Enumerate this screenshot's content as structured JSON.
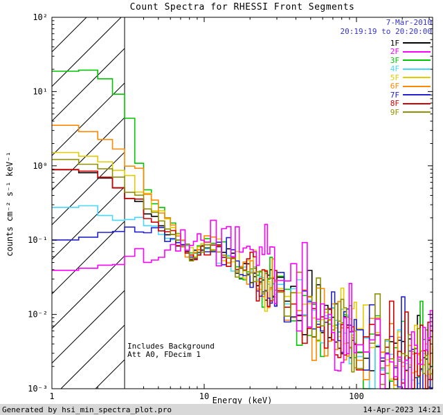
{
  "header": {
    "date_line1": "7-Mar-2010",
    "date_line2": "20:19:19 to 20:20:00",
    "date_color": "#3333CC"
  },
  "annotations": {
    "line1": "Includes Background",
    "line2": "Att A0, FDecim 1"
  },
  "footer": {
    "generated_by": "Generated by hsi_min_spectra_plot.pro",
    "timestamp": "14-Apr-2023 14:21"
  },
  "chart_data": {
    "type": "line",
    "title": "Count Spectra for RHESSI Front Segments",
    "xlabel": "Energy (keV)",
    "ylabel": "counts cm⁻² s⁻¹ keV⁻¹",
    "xscale": "log",
    "yscale": "log",
    "xlim": [
      1,
      316.23
    ],
    "ylim": [
      0.001,
      100
    ],
    "x_tick_values": [
      1,
      10,
      100
    ],
    "x_tick_labels": [
      "1",
      "10",
      "100"
    ],
    "y_tick_values": [
      100,
      10,
      1,
      0.1,
      0.01,
      0.001
    ],
    "y_tick_labels": [
      "10²",
      "10¹",
      "10⁰",
      "10⁻¹",
      "10⁻²",
      "10⁻³"
    ],
    "legend_position": "upper-right-inside",
    "hatch_region": {
      "from": 1,
      "to": 3
    },
    "bins": [
      [
        1,
        10,
        0.5
      ],
      [
        10,
        30,
        1
      ],
      [
        30,
        100,
        3.5
      ],
      [
        100,
        316.23,
        10.8
      ]
    ],
    "noise_sigma": [
      [
        3.2,
        0.012
      ],
      [
        10,
        0.05
      ],
      [
        20,
        0.1
      ],
      [
        40,
        0.16
      ],
      [
        100,
        0.24
      ],
      [
        320,
        0.34
      ]
    ],
    "series": [
      {
        "name": "1F",
        "color": "#000000",
        "seed": 11,
        "noise_scale": 1,
        "anchors": [
          [
            1,
            0.95
          ],
          [
            1.5,
            0.88
          ],
          [
            2,
            0.78
          ],
          [
            2.5,
            0.62
          ],
          [
            3,
            0.47
          ],
          [
            4,
            0.27
          ],
          [
            5,
            0.18
          ],
          [
            6,
            0.12
          ],
          [
            7,
            0.085
          ],
          [
            8.5,
            0.058
          ],
          [
            11,
            0.095
          ],
          [
            13,
            0.07
          ],
          [
            15,
            0.052
          ],
          [
            20,
            0.038
          ],
          [
            30,
            0.021
          ],
          [
            40,
            0.015
          ],
          [
            60,
            0.0085
          ],
          [
            80,
            0.006
          ],
          [
            100,
            0.0045
          ],
          [
            150,
            0.003
          ],
          [
            200,
            0.0024
          ],
          [
            316,
            0.0017
          ]
        ]
      },
      {
        "name": "2F",
        "color": "#FF00FF",
        "seed": 22,
        "noise_scale": 1.4,
        "anchors": [
          [
            1,
            0.038
          ],
          [
            2,
            0.042
          ],
          [
            3,
            0.05
          ],
          [
            4,
            0.065
          ],
          [
            5,
            0.075
          ],
          [
            7,
            0.082
          ],
          [
            9,
            0.09
          ],
          [
            11,
            0.14
          ],
          [
            14,
            0.11
          ],
          [
            17,
            0.12
          ],
          [
            20,
            0.09
          ],
          [
            25,
            0.06
          ],
          [
            30,
            0.045
          ],
          [
            40,
            0.028
          ],
          [
            50,
            0.018
          ],
          [
            70,
            0.01
          ],
          [
            100,
            0.006
          ],
          [
            150,
            0.0042
          ],
          [
            200,
            0.0032
          ],
          [
            316,
            0.0022
          ]
        ]
      },
      {
        "name": "3F",
        "color": "#00C400",
        "seed": 33,
        "noise_scale": 1,
        "anchors": [
          [
            1,
            18
          ],
          [
            1.6,
            20
          ],
          [
            2.1,
            16.5
          ],
          [
            2.6,
            11
          ],
          [
            3,
            7.5
          ],
          [
            3.3,
            3.5
          ],
          [
            3.7,
            1.1
          ],
          [
            4.2,
            0.45
          ],
          [
            5,
            0.28
          ],
          [
            6,
            0.19
          ],
          [
            7,
            0.12
          ],
          [
            8.5,
            0.065
          ],
          [
            11,
            0.095
          ],
          [
            13,
            0.07
          ],
          [
            15,
            0.052
          ],
          [
            20,
            0.038
          ],
          [
            30,
            0.021
          ],
          [
            40,
            0.015
          ],
          [
            60,
            0.0085
          ],
          [
            80,
            0.006
          ],
          [
            100,
            0.0045
          ],
          [
            150,
            0.003
          ],
          [
            200,
            0.0024
          ],
          [
            316,
            0.0017
          ]
        ]
      },
      {
        "name": "4F",
        "color": "#44D7FF",
        "seed": 44,
        "noise_scale": 1,
        "anchors": [
          [
            1,
            0.25
          ],
          [
            1.5,
            0.3
          ],
          [
            2,
            0.27
          ],
          [
            2.5,
            0.18
          ],
          [
            3,
            0.2
          ],
          [
            4,
            0.16
          ],
          [
            5,
            0.14
          ],
          [
            6,
            0.115
          ],
          [
            7,
            0.09
          ],
          [
            8.5,
            0.06
          ],
          [
            11,
            0.092
          ],
          [
            13,
            0.07
          ],
          [
            15,
            0.052
          ],
          [
            20,
            0.038
          ],
          [
            30,
            0.021
          ],
          [
            40,
            0.015
          ],
          [
            60,
            0.0085
          ],
          [
            80,
            0.006
          ],
          [
            100,
            0.0045
          ],
          [
            150,
            0.003
          ],
          [
            200,
            0.0024
          ],
          [
            316,
            0.0017
          ]
        ]
      },
      {
        "name": "5F",
        "color": "#E3CB00",
        "seed": 55,
        "noise_scale": 1,
        "anchors": [
          [
            1,
            1.5
          ],
          [
            1.5,
            1.45
          ],
          [
            2,
            1.25
          ],
          [
            2.5,
            1.0
          ],
          [
            3,
            0.78
          ],
          [
            4,
            0.42
          ],
          [
            5,
            0.24
          ],
          [
            6,
            0.15
          ],
          [
            7,
            0.095
          ],
          [
            8.5,
            0.06
          ],
          [
            11,
            0.095
          ],
          [
            13,
            0.07
          ],
          [
            15,
            0.052
          ],
          [
            20,
            0.038
          ],
          [
            30,
            0.021
          ],
          [
            40,
            0.015
          ],
          [
            60,
            0.0085
          ],
          [
            80,
            0.006
          ],
          [
            100,
            0.0045
          ],
          [
            150,
            0.003
          ],
          [
            200,
            0.0024
          ],
          [
            316,
            0.0017
          ]
        ]
      },
      {
        "name": "6F",
        "color": "#FF8800",
        "seed": 66,
        "noise_scale": 1,
        "anchors": [
          [
            1,
            3.4
          ],
          [
            1.5,
            3.25
          ],
          [
            2,
            2.6
          ],
          [
            2.5,
            1.9
          ],
          [
            3,
            1.3
          ],
          [
            3.5,
            0.78
          ],
          [
            4,
            0.5
          ],
          [
            5,
            0.27
          ],
          [
            6,
            0.16
          ],
          [
            7,
            0.1
          ],
          [
            8.5,
            0.062
          ],
          [
            11,
            0.098
          ],
          [
            13,
            0.07
          ],
          [
            15,
            0.052
          ],
          [
            20,
            0.038
          ],
          [
            30,
            0.021
          ],
          [
            40,
            0.015
          ],
          [
            60,
            0.0085
          ],
          [
            80,
            0.006
          ],
          [
            100,
            0.0045
          ],
          [
            150,
            0.003
          ],
          [
            200,
            0.0024
          ],
          [
            316,
            0.0017
          ]
        ]
      },
      {
        "name": "7F",
        "color": "#2020CC",
        "seed": 77,
        "noise_scale": 1,
        "anchors": [
          [
            1,
            0.09
          ],
          [
            1.5,
            0.105
          ],
          [
            2,
            0.12
          ],
          [
            2.5,
            0.128
          ],
          [
            3,
            0.133
          ],
          [
            4,
            0.135
          ],
          [
            5,
            0.125
          ],
          [
            6,
            0.108
          ],
          [
            7,
            0.088
          ],
          [
            8.5,
            0.06
          ],
          [
            11,
            0.09
          ],
          [
            13,
            0.07
          ],
          [
            15,
            0.052
          ],
          [
            20,
            0.038
          ],
          [
            30,
            0.021
          ],
          [
            40,
            0.015
          ],
          [
            60,
            0.0085
          ],
          [
            80,
            0.006
          ],
          [
            100,
            0.0045
          ],
          [
            150,
            0.003
          ],
          [
            200,
            0.0024
          ],
          [
            316,
            0.0017
          ]
        ]
      },
      {
        "name": "8F",
        "color": "#D40000",
        "seed": 88,
        "noise_scale": 1,
        "anchors": [
          [
            1,
            0.85
          ],
          [
            1.5,
            0.95
          ],
          [
            2,
            0.8
          ],
          [
            2.5,
            0.6
          ],
          [
            3,
            0.44
          ],
          [
            4,
            0.25
          ],
          [
            5,
            0.17
          ],
          [
            6,
            0.115
          ],
          [
            7,
            0.082
          ],
          [
            8.5,
            0.056
          ],
          [
            11,
            0.09
          ],
          [
            13,
            0.07
          ],
          [
            15,
            0.052
          ],
          [
            20,
            0.038
          ],
          [
            30,
            0.021
          ],
          [
            40,
            0.015
          ],
          [
            60,
            0.0085
          ],
          [
            80,
            0.006
          ],
          [
            100,
            0.0045
          ],
          [
            150,
            0.003
          ],
          [
            200,
            0.0024
          ],
          [
            316,
            0.0017
          ]
        ]
      },
      {
        "name": "9F",
        "color": "#8F8F00",
        "seed": 99,
        "noise_scale": 1,
        "anchors": [
          [
            1,
            1.25
          ],
          [
            1.5,
            1.15
          ],
          [
            2,
            0.98
          ],
          [
            2.5,
            0.78
          ],
          [
            3,
            0.56
          ],
          [
            4,
            0.3
          ],
          [
            5,
            0.2
          ],
          [
            6,
            0.13
          ],
          [
            7,
            0.09
          ],
          [
            8.5,
            0.06
          ],
          [
            11,
            0.09
          ],
          [
            13,
            0.07
          ],
          [
            15,
            0.052
          ],
          [
            20,
            0.038
          ],
          [
            30,
            0.021
          ],
          [
            40,
            0.015
          ],
          [
            60,
            0.0085
          ],
          [
            80,
            0.006
          ],
          [
            100,
            0.0045
          ],
          [
            150,
            0.003
          ],
          [
            200,
            0.0024
          ],
          [
            316,
            0.0017
          ]
        ]
      }
    ]
  }
}
